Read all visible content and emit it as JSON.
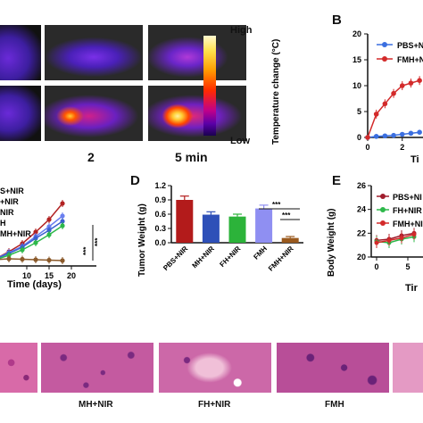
{
  "panel_a": {
    "colorbar_high": "High",
    "colorbar_low": "Low",
    "time_label_1": "2",
    "time_label_2": "5 min"
  },
  "panel_b": {
    "letter": "B",
    "ylabel": "Temperature change (°C)",
    "xlabel": "Ti",
    "yticks": [
      "0",
      "5",
      "10",
      "15",
      "20"
    ],
    "xticks": [
      "0",
      "2"
    ],
    "legend": [
      "PBS+NI",
      "FMH+N"
    ]
  },
  "panel_c": {
    "xlabel": "Time (days)",
    "xticks": [
      "10",
      "15",
      "20"
    ],
    "legend": [
      "S+NIR",
      "+NIR",
      "NIR",
      "H",
      "MH+NIR"
    ],
    "sig": [
      "***",
      "***"
    ]
  },
  "panel_d": {
    "letter": "D",
    "ylabel": "Tumor Weight (g)",
    "yticks": [
      "0.0",
      "0.3",
      "0.6",
      "0.9",
      "1.2"
    ],
    "categories": [
      "PBS+NIR",
      "MH+NIR",
      "FH+NIR",
      "FMH",
      "FMH+NIR"
    ],
    "sig": [
      "***",
      "***"
    ]
  },
  "panel_e": {
    "letter": "E",
    "ylabel": "Body Weight (g)",
    "xlabel": "Tir",
    "yticks": [
      "20",
      "22",
      "24",
      "26"
    ],
    "xticks": [
      "0",
      "5"
    ],
    "legend": [
      "PBS+NI",
      "FH+NIR",
      "FMH+NI"
    ]
  },
  "histology": {
    "captions": [
      "MH+NIR",
      "FH+NIR",
      "FMH"
    ]
  },
  "chart_data": [
    {
      "type": "line",
      "title": "",
      "xlabel": "Ti",
      "ylabel": "Temperature change (°C)",
      "ylim": [
        0,
        20
      ],
      "series": [
        {
          "name": "PBS+NI",
          "color": "#3b6fe0",
          "x": [
            0,
            0.5,
            1,
            1.5,
            2,
            2.5,
            3
          ],
          "y": [
            0,
            0.2,
            0.3,
            0.4,
            0.6,
            0.8,
            1.0
          ]
        },
        {
          "name": "FMH+N",
          "color": "#d32a2a",
          "x": [
            0,
            0.5,
            1,
            1.5,
            2,
            2.5,
            3
          ],
          "y": [
            0,
            4.5,
            6.5,
            8.5,
            10,
            10.5,
            11
          ]
        }
      ]
    },
    {
      "type": "line",
      "title": "",
      "xlabel": "Time (days)",
      "ylabel": "",
      "series": [
        {
          "color": "#b22222",
          "x": [
            3,
            6,
            9,
            12,
            15,
            18
          ],
          "y": [
            0.2,
            1.0,
            1.9,
            3.2,
            4.6,
            6.4
          ]
        },
        {
          "color": "#6a7ff0",
          "x": [
            3,
            6,
            9,
            12,
            15,
            18
          ],
          "y": [
            0.2,
            0.9,
            1.6,
            2.7,
            3.8,
            5.0
          ]
        },
        {
          "color": "#3a5fcf",
          "x": [
            3,
            6,
            9,
            12,
            15,
            18
          ],
          "y": [
            0.2,
            0.8,
            1.5,
            2.5,
            3.4,
            4.4
          ]
        },
        {
          "color": "#2db84a",
          "x": [
            3,
            6,
            9,
            12,
            15,
            18
          ],
          "y": [
            0.1,
            0.6,
            1.2,
            2.0,
            2.9,
            3.9
          ]
        },
        {
          "color": "#8b5a2b",
          "x": [
            3,
            6,
            9,
            12,
            15,
            18
          ],
          "y": [
            0.1,
            0.2,
            0.15,
            0.1,
            0.05,
            0.0
          ]
        }
      ]
    },
    {
      "type": "bar",
      "title": "",
      "xlabel": "",
      "ylabel": "Tumor Weight (g)",
      "ylim": [
        0,
        1.2
      ],
      "categories": [
        "PBS+NIR",
        "MH+NIR",
        "FH+NIR",
        "FMH",
        "FMH+NIR"
      ],
      "values": [
        0.9,
        0.59,
        0.55,
        0.72,
        0.1
      ],
      "errors": [
        0.08,
        0.06,
        0.05,
        0.07,
        0.03
      ],
      "colors": [
        "#b31b1b",
        "#2e50b8",
        "#2cb33a",
        "#8f8ff2",
        "#9a5a1e"
      ]
    },
    {
      "type": "line",
      "title": "",
      "xlabel": "Tir",
      "ylabel": "Body Weight (g)",
      "ylim": [
        20,
        26
      ],
      "series": [
        {
          "name": "PBS+NI",
          "color": "#a01c2c",
          "x": [
            0,
            2,
            4,
            6
          ],
          "y": [
            21.4,
            21.5,
            21.8,
            22.0
          ]
        },
        {
          "name": "FH+NIR",
          "color": "#2db84a",
          "x": [
            0,
            2,
            4,
            6
          ],
          "y": [
            21.3,
            21.2,
            21.5,
            21.7
          ]
        },
        {
          "name": "FMH+NI",
          "color": "#d32a2a",
          "x": [
            0,
            2,
            4,
            6
          ],
          "y": [
            21.2,
            21.4,
            21.6,
            21.9
          ]
        }
      ]
    }
  ]
}
